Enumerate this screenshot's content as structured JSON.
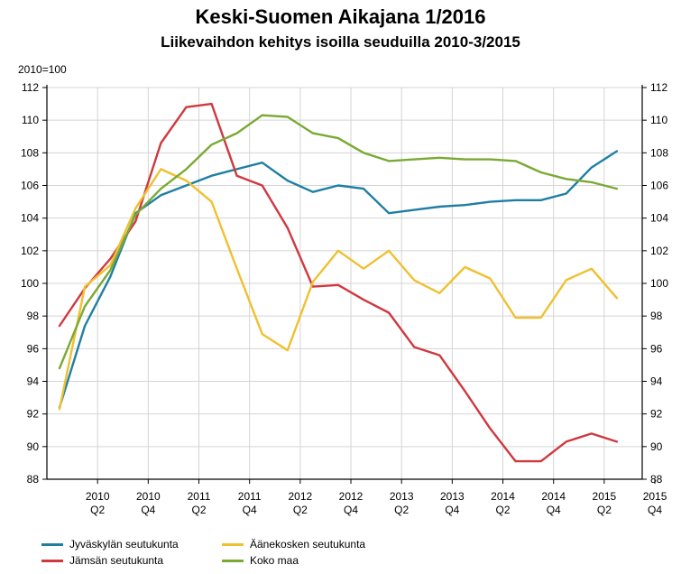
{
  "chart_data": {
    "type": "line",
    "title": "Keski-Suomen Aikajana 1/2016",
    "subtitle": "Liikevaihdon kehitys isoilla seuduilla 2010-3/2015",
    "unit_label": "2010=100",
    "xlabel": "",
    "ylabel": "",
    "ylim": [
      88,
      112
    ],
    "y_ticks": [
      88,
      90,
      92,
      94,
      96,
      98,
      100,
      102,
      104,
      106,
      108,
      110,
      112
    ],
    "grid": true,
    "legend_position": "bottom-left",
    "x_ticks": [
      {
        "year": "2010",
        "quarter": "Q2"
      },
      {
        "year": "2010",
        "quarter": "Q4"
      },
      {
        "year": "2011",
        "quarter": "Q2"
      },
      {
        "year": "2011",
        "quarter": "Q4"
      },
      {
        "year": "2012",
        "quarter": "Q2"
      },
      {
        "year": "2012",
        "quarter": "Q4"
      },
      {
        "year": "2013",
        "quarter": "Q2"
      },
      {
        "year": "2013",
        "quarter": "Q4"
      },
      {
        "year": "2014",
        "quarter": "Q2"
      },
      {
        "year": "2014",
        "quarter": "Q4"
      },
      {
        "year": "2015",
        "quarter": "Q2"
      },
      {
        "year": "2015",
        "quarter": "Q4"
      }
    ],
    "x": [
      "2010Q1",
      "2010Q2",
      "2010Q3",
      "2010Q4",
      "2011Q1",
      "2011Q2",
      "2011Q3",
      "2011Q4",
      "2012Q1",
      "2012Q2",
      "2012Q3",
      "2012Q4",
      "2013Q1",
      "2013Q2",
      "2013Q3",
      "2013Q4",
      "2014Q1",
      "2014Q2",
      "2014Q3",
      "2014Q4",
      "2015Q1",
      "2015Q2",
      "2015Q3"
    ],
    "series": [
      {
        "name": "Jyväskylän seutukunta",
        "color": "#1f7fa3",
        "values": [
          92.4,
          97.4,
          100.4,
          104.3,
          105.4,
          106.0,
          106.6,
          107.0,
          107.4,
          106.3,
          105.6,
          106.0,
          105.8,
          104.3,
          104.5,
          104.7,
          104.8,
          105.0,
          105.1,
          105.1,
          105.5,
          107.1,
          108.1
        ]
      },
      {
        "name": "Jämsän seutukunta",
        "color": "#d0383f",
        "values": [
          97.4,
          99.7,
          101.5,
          103.8,
          108.6,
          110.8,
          111.0,
          106.6,
          106.0,
          103.4,
          99.8,
          99.9,
          99.0,
          98.2,
          96.1,
          95.6,
          93.4,
          91.1,
          89.1,
          89.1,
          90.3,
          90.8,
          90.3
        ]
      },
      {
        "name": "Äänekosken seutukunta",
        "color": "#f0c030",
        "values": [
          92.3,
          99.8,
          101.1,
          104.6,
          107.0,
          106.3,
          105.0,
          100.9,
          96.9,
          95.9,
          100.1,
          102.0,
          100.9,
          102.0,
          100.2,
          99.4,
          101.0,
          100.3,
          97.9,
          97.9,
          100.2,
          100.9,
          99.1
        ]
      },
      {
        "name": "Koko maa",
        "color": "#7aaa34",
        "values": [
          94.8,
          98.6,
          100.8,
          104.2,
          105.8,
          107.0,
          108.5,
          109.2,
          110.3,
          110.2,
          109.2,
          108.9,
          108.0,
          107.5,
          107.6,
          107.7,
          107.6,
          107.6,
          107.5,
          106.8,
          106.4,
          106.2,
          105.8
        ]
      }
    ]
  }
}
